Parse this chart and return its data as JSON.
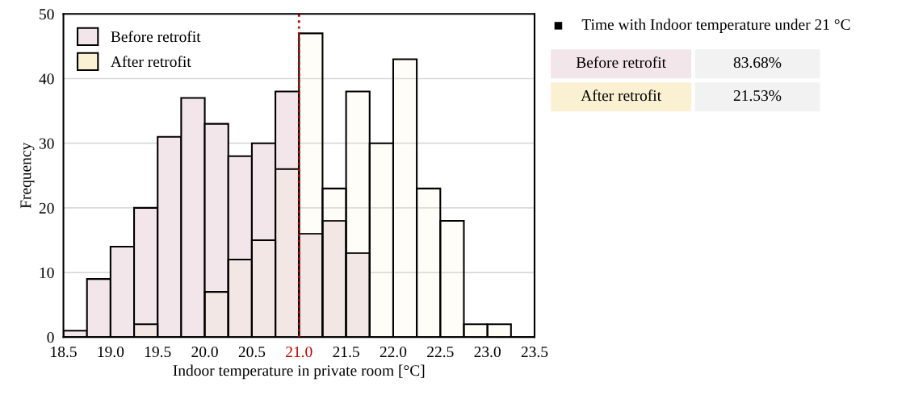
{
  "chart_data": {
    "type": "histogram",
    "xlabel": "Indoor temperature in private room [°C]",
    "ylabel": "Frequency",
    "bins": [
      18.5,
      18.75,
      19.0,
      19.25,
      19.5,
      19.75,
      20.0,
      20.25,
      20.5,
      20.75,
      21.0,
      21.25,
      21.5,
      21.75,
      22.0,
      22.25,
      22.5,
      22.75,
      23.0,
      23.25,
      23.5
    ],
    "series": [
      {
        "name": "Before retrofit",
        "color": "#f3e6ea",
        "values": [
          1,
          9,
          14,
          20,
          31,
          37,
          33,
          28,
          30,
          38,
          16,
          18,
          13,
          0,
          0,
          0,
          0,
          0,
          0,
          0
        ]
      },
      {
        "name": "After retrofit",
        "color": "#faf0d2",
        "values": [
          0,
          0,
          0,
          2,
          0,
          0,
          7,
          12,
          15,
          26,
          47,
          23,
          38,
          30,
          43,
          23,
          18,
          2,
          2,
          0
        ]
      }
    ],
    "xlim": [
      18.5,
      23.5
    ],
    "xticks": [
      18.5,
      {
        "value": 19.0,
        "label": "19.0"
      },
      19.5,
      {
        "value": 20.0,
        "label": "20.0"
      },
      20.5,
      {
        "value": 21.0,
        "label": "21.0"
      },
      21.5,
      {
        "value": 22.0,
        "label": "22.0"
      },
      22.5,
      {
        "value": 23.0,
        "label": "23.0"
      },
      23.5
    ],
    "ylim": [
      0,
      50
    ],
    "yticks": [
      0,
      10,
      20,
      30,
      40,
      50
    ],
    "ref_lines": [
      {
        "axis": "x",
        "value": 21.0,
        "color": "#c00000",
        "line_style": "dotted"
      }
    ],
    "grid": "y",
    "legend": "top left",
    "annotations": [
      "Time with Indoor temperature under 21 °C",
      "Before retrofit",
      "83.68%",
      "After retrofit",
      "21.53%"
    ]
  }
}
